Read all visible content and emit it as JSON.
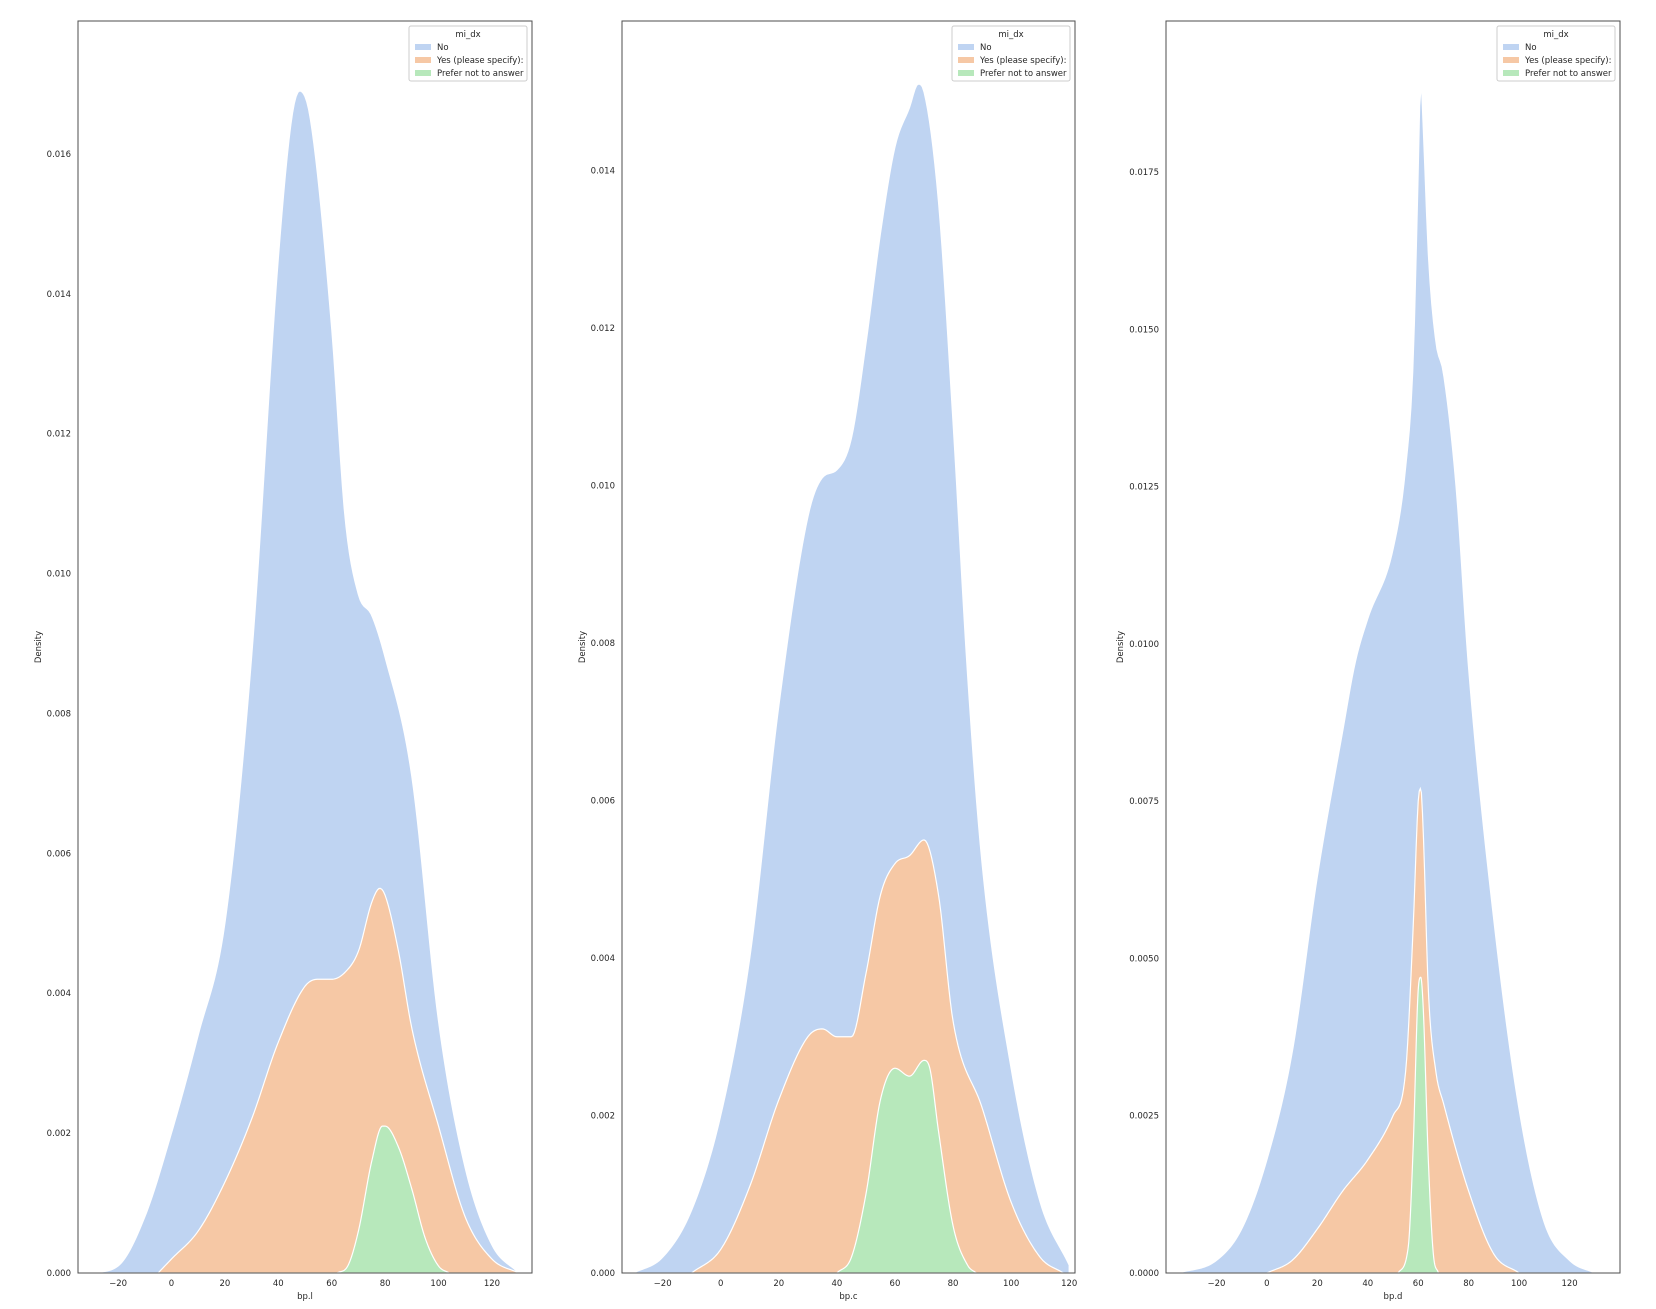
{
  "figure": {
    "legend_title": "mi_dx",
    "y_axis_label": "Density",
    "series_names": [
      "No",
      "Yes (please specify):",
      "Prefer not to answer"
    ],
    "colors": {
      "No": "#bfd4f2",
      "Yes (please specify):": "#f6c8a5",
      "Prefer not to answer": "#b7e8bb",
      "area_edge": "#ffffff",
      "axes_frame": "#4d4d4d"
    }
  },
  "chart_data": [
    {
      "type": "area",
      "stacked": true,
      "xlabel": "bp.l",
      "ylabel": "Density",
      "xlim": [
        -35,
        135
      ],
      "ylim": [
        0,
        0.0179
      ],
      "xticks": [
        -20,
        0,
        20,
        40,
        60,
        80,
        100,
        120
      ],
      "yticks": [
        0.0,
        0.002,
        0.004,
        0.006,
        0.008,
        0.01,
        0.012,
        0.014,
        0.016
      ],
      "ytick_labels": [
        "0.000",
        "0.002",
        "0.004",
        "0.006",
        "0.008",
        "0.010",
        "0.012",
        "0.014",
        "0.016"
      ],
      "legend": {
        "title": "mi_dx",
        "placement": "top-right"
      },
      "series": [
        {
          "name": "No",
          "cumulative": [
            [
              -30,
              0
            ],
            [
              -20,
              0.0001
            ],
            [
              -10,
              0.0008
            ],
            [
              0,
              0.002
            ],
            [
              10,
              0.0034
            ],
            [
              20,
              0.005
            ],
            [
              30,
              0.0088
            ],
            [
              40,
              0.0145
            ],
            [
              45,
              0.0165
            ],
            [
              48,
              0.0169
            ],
            [
              52,
              0.0165
            ],
            [
              60,
              0.0135
            ],
            [
              65,
              0.0108
            ],
            [
              70,
              0.0097
            ],
            [
              75,
              0.0094
            ],
            [
              80,
              0.0088
            ],
            [
              90,
              0.0071
            ],
            [
              100,
              0.0036
            ],
            [
              110,
              0.0015
            ],
            [
              120,
              0.0004
            ],
            [
              130,
              0.0
            ]
          ]
        },
        {
          "name": "Yes (please specify):",
          "cumulative": [
            [
              -5,
              0
            ],
            [
              0,
              0.0002
            ],
            [
              10,
              0.0006
            ],
            [
              20,
              0.0013
            ],
            [
              30,
              0.0022
            ],
            [
              40,
              0.0033
            ],
            [
              50,
              0.0041
            ],
            [
              55,
              0.0042
            ],
            [
              60,
              0.0042
            ],
            [
              65,
              0.0043
            ],
            [
              70,
              0.0046
            ],
            [
              75,
              0.0053
            ],
            [
              78,
              0.0055
            ],
            [
              80,
              0.0054
            ],
            [
              85,
              0.0046
            ],
            [
              90,
              0.0035
            ],
            [
              100,
              0.0021
            ],
            [
              110,
              0.0008
            ],
            [
              120,
              0.0002
            ],
            [
              130,
              0.0
            ]
          ]
        },
        {
          "name": "Prefer not to answer",
          "cumulative": [
            [
              62,
              0
            ],
            [
              66,
              0.0001
            ],
            [
              70,
              0.0006
            ],
            [
              75,
              0.0016
            ],
            [
              79,
              0.0021
            ],
            [
              80,
              0.0021
            ],
            [
              85,
              0.0018
            ],
            [
              90,
              0.0012
            ],
            [
              95,
              0.0005
            ],
            [
              100,
              0.0001
            ],
            [
              104,
              0.0
            ]
          ]
        }
      ]
    },
    {
      "type": "area",
      "stacked": true,
      "xlabel": "bp.c",
      "ylabel": "Density",
      "xlim": [
        -34,
        122
      ],
      "ylim": [
        0,
        0.0159
      ],
      "xticks": [
        -20,
        0,
        20,
        40,
        60,
        80,
        100,
        120
      ],
      "yticks": [
        0.0,
        0.002,
        0.004,
        0.006,
        0.008,
        0.01,
        0.012,
        0.014
      ],
      "ytick_labels": [
        "0.000",
        "0.002",
        "0.004",
        "0.006",
        "0.008",
        "0.010",
        "0.012",
        "0.014"
      ],
      "legend": {
        "title": "mi_dx",
        "placement": "top-right"
      },
      "series": [
        {
          "name": "No",
          "cumulative": [
            [
              -30,
              0
            ],
            [
              -20,
              0.0002
            ],
            [
              -10,
              0.0008
            ],
            [
              0,
              0.002
            ],
            [
              10,
              0.004
            ],
            [
              20,
              0.0072
            ],
            [
              30,
              0.0096
            ],
            [
              35,
              0.0101
            ],
            [
              40,
              0.0102
            ],
            [
              45,
              0.0106
            ],
            [
              50,
              0.0118
            ],
            [
              55,
              0.0132
            ],
            [
              60,
              0.0143
            ],
            [
              65,
              0.0148
            ],
            [
              68,
              0.0151
            ],
            [
              70,
              0.015
            ],
            [
              75,
              0.0136
            ],
            [
              80,
              0.0108
            ],
            [
              85,
              0.0076
            ],
            [
              90,
              0.0052
            ],
            [
              100,
              0.0026
            ],
            [
              110,
              0.0009
            ],
            [
              120,
              0.0001
            ]
          ]
        },
        {
          "name": "Yes (please specify):",
          "cumulative": [
            [
              -10,
              0
            ],
            [
              0,
              0.0003
            ],
            [
              10,
              0.0011
            ],
            [
              20,
              0.0022
            ],
            [
              30,
              0.003
            ],
            [
              35,
              0.0031
            ],
            [
              40,
              0.003
            ],
            [
              45,
              0.003
            ],
            [
              50,
              0.0038
            ],
            [
              55,
              0.0048
            ],
            [
              60,
              0.0052
            ],
            [
              65,
              0.0053
            ],
            [
              70,
              0.0055
            ],
            [
              75,
              0.0048
            ],
            [
              80,
              0.0032
            ],
            [
              90,
              0.0021
            ],
            [
              100,
              0.0009
            ],
            [
              110,
              0.0002
            ],
            [
              118,
              0.0
            ]
          ]
        },
        {
          "name": "Prefer not to answer",
          "cumulative": [
            [
              40,
              0
            ],
            [
              45,
              0.0002
            ],
            [
              50,
              0.001
            ],
            [
              55,
              0.0022
            ],
            [
              60,
              0.0026
            ],
            [
              65,
              0.0025
            ],
            [
              70,
              0.0027
            ],
            [
              72,
              0.0026
            ],
            [
              75,
              0.0018
            ],
            [
              80,
              0.0006
            ],
            [
              85,
              0.0001
            ],
            [
              88,
              0.0
            ]
          ]
        }
      ]
    },
    {
      "type": "area",
      "stacked": true,
      "xlabel": "bp.d",
      "ylabel": "Density",
      "xlim": [
        -40,
        140
      ],
      "ylim": [
        0,
        0.0199
      ],
      "xticks": [
        -20,
        0,
        20,
        40,
        60,
        80,
        100,
        120
      ],
      "yticks": [
        0.0,
        0.0025,
        0.005,
        0.0075,
        0.01,
        0.0125,
        0.015,
        0.0175
      ],
      "ytick_labels": [
        "0.0000",
        "0.0025",
        "0.0050",
        "0.0075",
        "0.0100",
        "0.0125",
        "0.0150",
        "0.0175"
      ],
      "legend": {
        "title": "mi_dx",
        "placement": "top-right"
      },
      "series": [
        {
          "name": "No",
          "cumulative": [
            [
              -35,
              0
            ],
            [
              -20,
              0.0002
            ],
            [
              -10,
              0.0007
            ],
            [
              0,
              0.0018
            ],
            [
              10,
              0.0035
            ],
            [
              20,
              0.0063
            ],
            [
              30,
              0.0086
            ],
            [
              35,
              0.0097
            ],
            [
              40,
              0.0104
            ],
            [
              50,
              0.0115
            ],
            [
              55,
              0.0128
            ],
            [
              58,
              0.0145
            ],
            [
              60,
              0.0175
            ],
            [
              61,
              0.019
            ],
            [
              62,
              0.0182
            ],
            [
              64,
              0.0162
            ],
            [
              67,
              0.0148
            ],
            [
              70,
              0.0143
            ],
            [
              75,
              0.0125
            ],
            [
              80,
              0.0096
            ],
            [
              90,
              0.0056
            ],
            [
              100,
              0.0026
            ],
            [
              110,
              0.0008
            ],
            [
              120,
              0.0002
            ],
            [
              130,
              0.0
            ]
          ]
        },
        {
          "name": "Yes (please specify):",
          "cumulative": [
            [
              0,
              0
            ],
            [
              10,
              0.0002
            ],
            [
              20,
              0.0007
            ],
            [
              30,
              0.0013
            ],
            [
              40,
              0.0018
            ],
            [
              50,
              0.0025
            ],
            [
              55,
              0.0032
            ],
            [
              58,
              0.0055
            ],
            [
              60,
              0.0075
            ],
            [
              61,
              0.0077
            ],
            [
              62,
              0.007
            ],
            [
              64,
              0.0045
            ],
            [
              67,
              0.0032
            ],
            [
              70,
              0.0027
            ],
            [
              80,
              0.0013
            ],
            [
              90,
              0.0003
            ],
            [
              100,
              0.0
            ]
          ]
        },
        {
          "name": "Prefer not to answer",
          "cumulative": [
            [
              52,
              0
            ],
            [
              56,
              0.0004
            ],
            [
              58,
              0.002
            ],
            [
              60,
              0.0045
            ],
            [
              61,
              0.0047
            ],
            [
              62,
              0.0042
            ],
            [
              64,
              0.0018
            ],
            [
              66,
              0.0003
            ],
            [
              68,
              0.0
            ]
          ]
        }
      ]
    }
  ]
}
